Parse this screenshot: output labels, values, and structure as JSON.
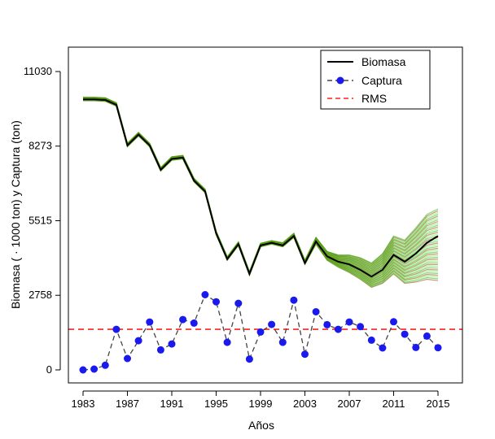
{
  "chart_data": {
    "type": "line",
    "title": "",
    "xlabel": "Años",
    "ylabel": "Biomasa ( · 1000 ton) y Captura (ton)",
    "xlim": [
      1983,
      2015
    ],
    "ylim": [
      0,
      11030
    ],
    "x_ticks": [
      "1983",
      "1987",
      "1991",
      "1995",
      "1999",
      "2003",
      "2007",
      "2011",
      "2015"
    ],
    "y_ticks": [
      "0",
      "2758",
      "5515",
      "8273",
      "11030"
    ],
    "years": [
      1983,
      1984,
      1985,
      1986,
      1987,
      1988,
      1989,
      1990,
      1991,
      1992,
      1993,
      1994,
      1995,
      1996,
      1997,
      1998,
      1999,
      2000,
      2001,
      2002,
      2003,
      2004,
      2005,
      2006,
      2007,
      2008,
      2009,
      2010,
      2011,
      2012,
      2013,
      2014,
      2015
    ],
    "series": [
      {
        "name": "Biomasa",
        "style": "solid",
        "color": "#000000",
        "values": [
          10000,
          10000,
          9980,
          9800,
          8300,
          8700,
          8300,
          7400,
          7800,
          7850,
          7000,
          6600,
          5050,
          4100,
          4650,
          3550,
          4600,
          4700,
          4600,
          4950,
          3950,
          4750,
          4200,
          4000,
          3900,
          3700,
          3450,
          3700,
          4250,
          4000,
          4300,
          4700,
          4950
        ]
      },
      {
        "name": "Captura",
        "style": "dashed-points",
        "color": "#1a1aee",
        "values": [
          0,
          30,
          170,
          1500,
          420,
          1080,
          1770,
          740,
          960,
          1860,
          1730,
          2780,
          2520,
          1020,
          2460,
          400,
          1400,
          1680,
          1020,
          2580,
          580,
          2150,
          1670,
          1500,
          1770,
          1600,
          1100,
          810,
          1780,
          1320,
          830,
          1250,
          820
        ]
      },
      {
        "name": "RMS",
        "style": "dashed",
        "color": "#ff2020",
        "values": [
          1500
        ]
      }
    ],
    "uncertainty_band": {
      "colors": [
        "#8b4513",
        "#2db300",
        "#66ee44"
      ],
      "lower": [
        9950,
        9950,
        9930,
        9750,
        8250,
        8650,
        8250,
        7350,
        7750,
        7800,
        6950,
        6550,
        5000,
        4050,
        4600,
        3500,
        4550,
        4650,
        4550,
        4900,
        3900,
        4650,
        4050,
        3800,
        3600,
        3350,
        3050,
        3200,
        3550,
        3200,
        3250,
        3350,
        3300
      ],
      "upper": [
        10080,
        10080,
        10060,
        9880,
        8380,
        8780,
        8380,
        7480,
        7880,
        7930,
        7080,
        6680,
        5130,
        4180,
        4730,
        3630,
        4680,
        4780,
        4700,
        5050,
        4050,
        4900,
        4380,
        4250,
        4250,
        4150,
        3950,
        4300,
        4950,
        4800,
        5250,
        5750,
        5950
      ]
    },
    "legend": {
      "position": "top-right",
      "entries": [
        "Biomasa",
        "Captura",
        "RMS"
      ]
    },
    "grid": false
  }
}
